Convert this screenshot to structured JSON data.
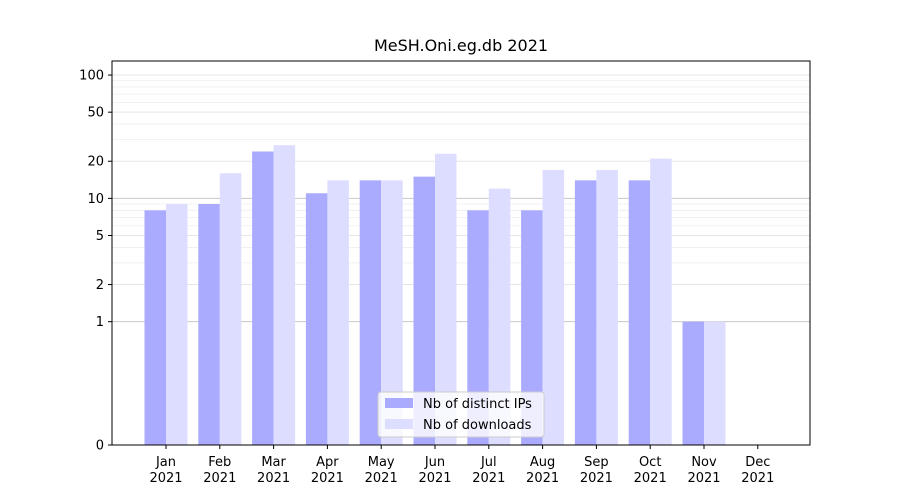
{
  "chart_data": {
    "type": "bar",
    "title": "MeSH.Oni.eg.db 2021",
    "xlabel": "",
    "ylabel": "",
    "y_scale": "symlog",
    "ylim": [
      0,
      130
    ],
    "y_ticks": [
      0,
      1,
      2,
      5,
      10,
      20,
      50,
      100
    ],
    "y_tick_labels": [
      "0",
      "1",
      "2",
      "5",
      "10",
      "20",
      "50",
      "100"
    ],
    "grid": true,
    "legend_position": "bottom-center",
    "categories": [
      [
        "Jan",
        "2021"
      ],
      [
        "Feb",
        "2021"
      ],
      [
        "Mar",
        "2021"
      ],
      [
        "Apr",
        "2021"
      ],
      [
        "May",
        "2021"
      ],
      [
        "Jun",
        "2021"
      ],
      [
        "Jul",
        "2021"
      ],
      [
        "Aug",
        "2021"
      ],
      [
        "Sep",
        "2021"
      ],
      [
        "Oct",
        "2021"
      ],
      [
        "Nov",
        "2021"
      ],
      [
        "Dec",
        "2021"
      ]
    ],
    "series": [
      {
        "name": "Nb of distinct IPs",
        "color": "#aaaaff",
        "values": [
          8,
          9,
          24,
          11,
          14,
          15,
          8,
          8,
          14,
          14,
          1,
          0
        ]
      },
      {
        "name": "Nb of downloads",
        "color": "#ddddff",
        "values": [
          9,
          16,
          27,
          14,
          14,
          23,
          12,
          17,
          17,
          21,
          1,
          0
        ]
      }
    ]
  }
}
